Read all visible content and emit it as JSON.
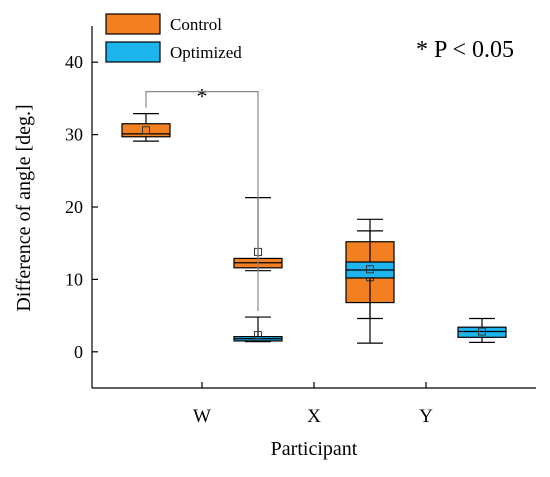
{
  "chart_data": {
    "type": "box",
    "xlabel": "Participant",
    "ylabel": "Difference of angle [deg.]",
    "ylim": [
      -5,
      45
    ],
    "y_ticks": [
      0,
      10,
      20,
      30,
      40
    ],
    "categories": [
      "W",
      "X",
      "Y"
    ],
    "legend": {
      "placement": "top-left",
      "entries": [
        "Control",
        "Optimized"
      ]
    },
    "annotation": "* P < 0.05",
    "significance": {
      "label": "*",
      "category": "W",
      "between": [
        "Control",
        "Optimized"
      ]
    },
    "series": [
      {
        "name": "Control",
        "color": "#F28020",
        "boxes": [
          {
            "category": "W",
            "min": 29.1,
            "q1": 29.7,
            "median": 30.1,
            "q3": 31.5,
            "max": 32.9,
            "mean": 30.6
          },
          {
            "category": "X",
            "min": 11.2,
            "q1": 11.6,
            "median": 12.3,
            "q3": 12.9,
            "max": 21.3,
            "mean": 13.8
          },
          {
            "category": "Y",
            "min": 1.2,
            "q1": 6.8,
            "median": 11.3,
            "q3": 15.2,
            "max": 16.7,
            "mean": 10.3
          }
        ]
      },
      {
        "name": "Optimized",
        "color": "#1EB4EE",
        "boxes": [
          {
            "category": "W",
            "min": 1.4,
            "q1": 1.5,
            "median": 1.8,
            "q3": 2.1,
            "max": 4.8,
            "mean": 2.3
          },
          {
            "category": "X",
            "min": 4.6,
            "q1": 10.2,
            "median": 11.3,
            "q3": 12.4,
            "max": 18.3,
            "mean": 11.4
          },
          {
            "category": "Y",
            "min": 1.3,
            "q1": 2.0,
            "median": 2.8,
            "q3": 3.4,
            "max": 4.6,
            "mean": 2.8
          }
        ]
      }
    ]
  }
}
